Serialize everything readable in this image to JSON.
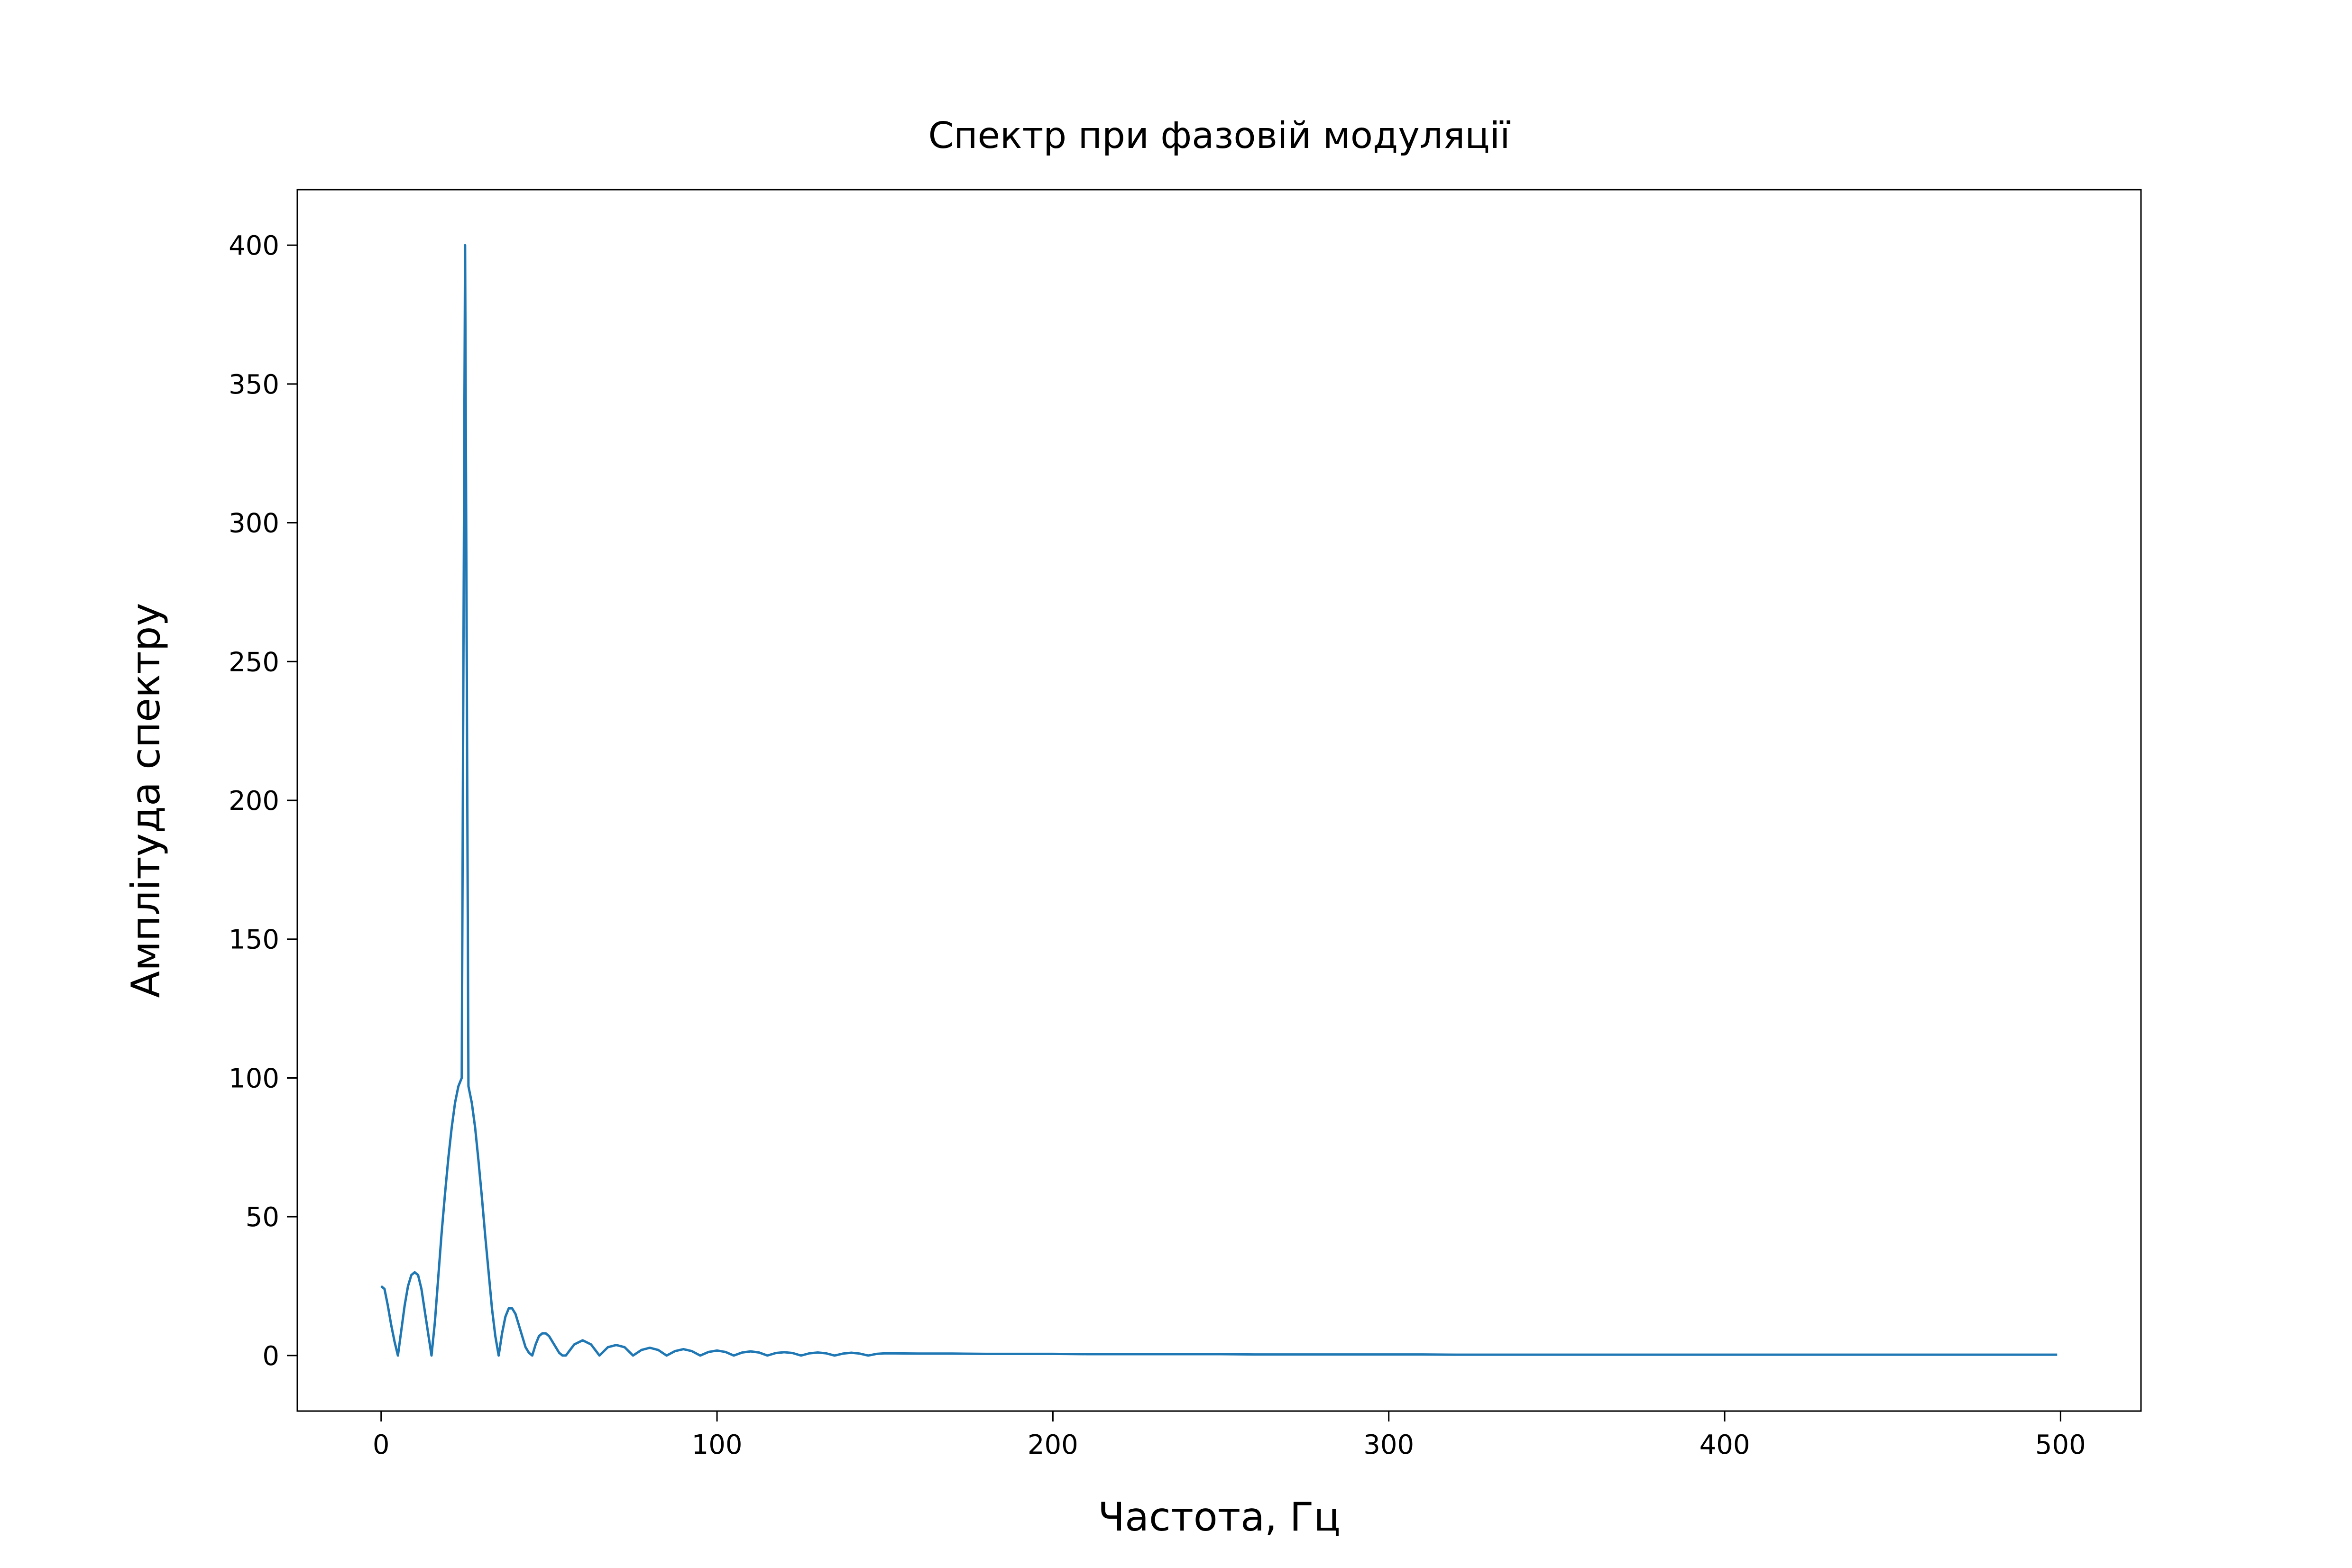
{
  "chart_data": {
    "type": "line",
    "title": "Спектр при фазовій модуляції",
    "x_label": "Частота, Гц",
    "y_label": "Амплітуда спектру",
    "xlim": [
      -24.95,
      523.95
    ],
    "ylim": [
      -20,
      420
    ],
    "xticks": [
      0,
      100,
      200,
      300,
      400,
      500
    ],
    "yticks": [
      0,
      50,
      100,
      150,
      200,
      250,
      300,
      350,
      400
    ],
    "grid": false,
    "series": [
      {
        "color": "#1f77b4",
        "x": [
          0,
          1,
          2,
          3,
          4,
          5,
          6,
          7,
          8,
          9,
          10,
          11,
          12,
          13,
          14,
          15,
          16,
          17,
          18,
          19,
          20,
          21,
          22,
          23,
          24,
          25,
          26,
          27,
          28,
          29,
          30,
          31,
          32,
          33,
          34,
          35,
          36,
          37,
          38,
          39,
          40,
          41,
          42,
          43,
          44,
          45,
          46,
          47,
          48,
          49,
          50,
          51,
          52,
          53,
          54,
          55,
          57.5,
          60,
          62.5,
          65,
          67.5,
          70,
          72.5,
          75,
          77.5,
          80,
          82.5,
          85,
          87.5,
          90,
          92.5,
          95,
          97.5,
          100,
          102.5,
          105,
          107.5,
          110,
          112.5,
          115,
          117.5,
          120,
          122.5,
          125,
          127.5,
          130,
          132.5,
          135,
          137.5,
          140,
          142.5,
          145,
          147.5,
          150,
          160,
          170,
          180,
          190,
          200,
          210,
          220,
          230,
          240,
          250,
          260,
          270,
          280,
          290,
          300,
          310,
          320,
          330,
          340,
          350,
          360,
          370,
          380,
          390,
          400,
          410,
          420,
          430,
          440,
          450,
          460,
          470,
          480,
          490,
          499
        ],
        "values": [
          25,
          24,
          18,
          11,
          5,
          0,
          9,
          18,
          25,
          29,
          30,
          29,
          24,
          16,
          8,
          0,
          12,
          28,
          44,
          58,
          71,
          82,
          91,
          97,
          100,
          400,
          97,
          91,
          82,
          70,
          57,
          43,
          30,
          17,
          7,
          0,
          8,
          14,
          17,
          17,
          15,
          11,
          7,
          3,
          1,
          0,
          4,
          7,
          8,
          8,
          7,
          5,
          3,
          1,
          0,
          0,
          4,
          5.5,
          4,
          0,
          3,
          3.8,
          3,
          0,
          2,
          2.8,
          2,
          0,
          1.6,
          2.3,
          1.6,
          0,
          1.3,
          1.8,
          1.3,
          0,
          1.1,
          1.5,
          1.1,
          0,
          0.9,
          1.2,
          0.9,
          0,
          0.8,
          1.1,
          0.8,
          0,
          0.7,
          1,
          0.7,
          0,
          0.6,
          0.8,
          0.7,
          0.7,
          0.6,
          0.6,
          0.6,
          0.5,
          0.5,
          0.5,
          0.5,
          0.5,
          0.4,
          0.4,
          0.4,
          0.4,
          0.4,
          0.4,
          0.3,
          0.3,
          0.3,
          0.3,
          0.3,
          0.3,
          0.3,
          0.3,
          0.3,
          0.3,
          0.3,
          0.3,
          0.3,
          0.3,
          0.3,
          0.3,
          0.3,
          0.3,
          0.3
        ]
      }
    ]
  }
}
